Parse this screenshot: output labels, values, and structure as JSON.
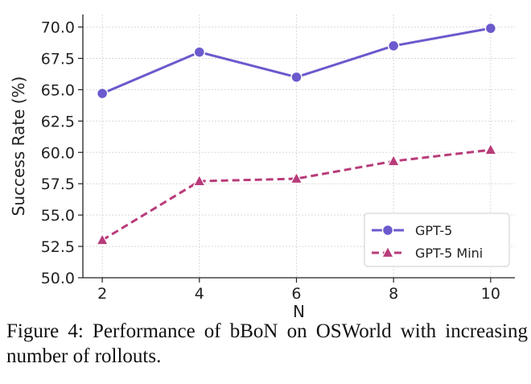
{
  "chart_data": {
    "type": "line",
    "x": [
      2,
      4,
      6,
      8,
      10
    ],
    "series": [
      {
        "name": "GPT-5",
        "values": [
          64.7,
          68.0,
          66.0,
          68.5,
          69.9
        ],
        "color": "#6a5acd",
        "marker": "circle",
        "line": "solid"
      },
      {
        "name": "GPT-5 Mini",
        "values": [
          53.0,
          57.7,
          57.9,
          59.3,
          60.2
        ],
        "color": "#b83c7a",
        "marker": "triangle",
        "line": "dashed"
      }
    ],
    "xlabel": "N",
    "ylabel": "Success Rate (%)",
    "xticks": [
      "2",
      "4",
      "6",
      "8",
      "10"
    ],
    "yticks": [
      "50.0",
      "52.5",
      "55.0",
      "57.5",
      "60.0",
      "62.5",
      "65.0",
      "67.5",
      "70.0"
    ],
    "xlim": [
      1.6,
      10.5
    ],
    "ylim": [
      50.0,
      71.0
    ],
    "grid": true,
    "legend_position": "lower-right"
  },
  "caption": "Figure 4: Performance of bBoN on OSWorld with increasing number of rollouts."
}
